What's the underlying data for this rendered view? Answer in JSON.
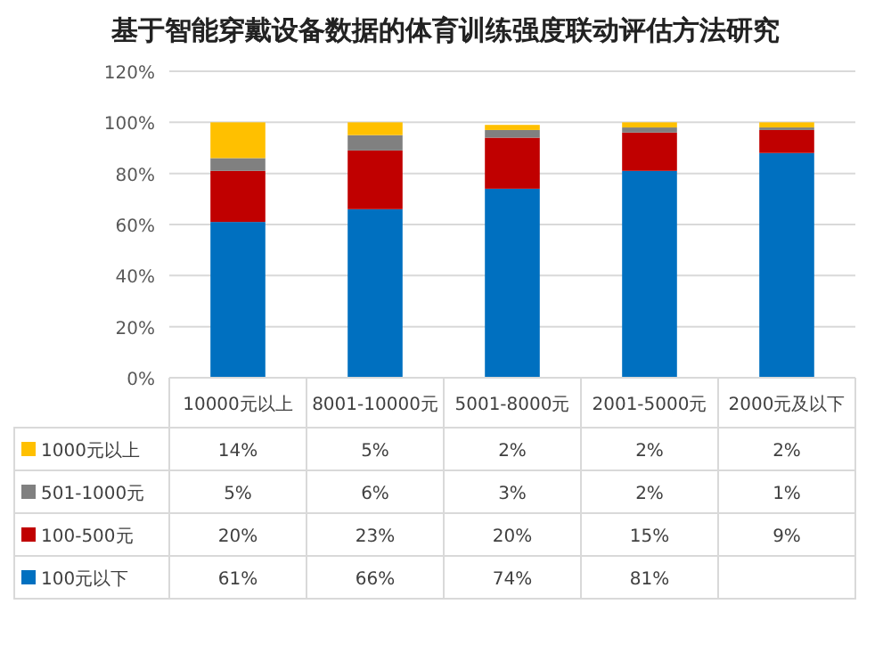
{
  "chart_data": {
    "type": "bar",
    "stacked": true,
    "title": "基于智能穿戴设备数据的体育训练强度联动评估方法研究",
    "categories": [
      "10000元以上",
      "8001-10000元",
      "5001-8000元",
      "2001-5000元",
      "2000元及以下"
    ],
    "ylim": [
      0,
      120
    ],
    "yticks": [
      {
        "value": 0,
        "label": "0%"
      },
      {
        "value": 20,
        "label": "20%"
      },
      {
        "value": 40,
        "label": "40%"
      },
      {
        "value": 60,
        "label": "60%"
      },
      {
        "value": 80,
        "label": "80%"
      },
      {
        "value": 100,
        "label": "100%"
      },
      {
        "value": 120,
        "label": "120%"
      }
    ],
    "grid": "y",
    "legend": "bottom",
    "series": [
      {
        "name": "100元以下",
        "color": "#0070c0",
        "values": [
          61,
          66,
          74,
          81,
          88
        ],
        "value_labels": [
          "61%",
          "66%",
          "74%",
          "81%",
          null
        ]
      },
      {
        "name": "100-500元",
        "color": "#c00000",
        "values": [
          20,
          23,
          20,
          15,
          9
        ],
        "value_labels": [
          "20%",
          "23%",
          "20%",
          "15%",
          "9%"
        ]
      },
      {
        "name": "501-1000元",
        "color": "#808080",
        "values": [
          5,
          6,
          3,
          2,
          1
        ],
        "value_labels": [
          "5%",
          "6%",
          "3%",
          "2%",
          "1%"
        ]
      },
      {
        "name": "1000元以上",
        "color": "#ffc000",
        "values": [
          14,
          5,
          2,
          2,
          2
        ],
        "value_labels": [
          "14%",
          "5%",
          "2%",
          "2%",
          "2%"
        ]
      }
    ]
  }
}
